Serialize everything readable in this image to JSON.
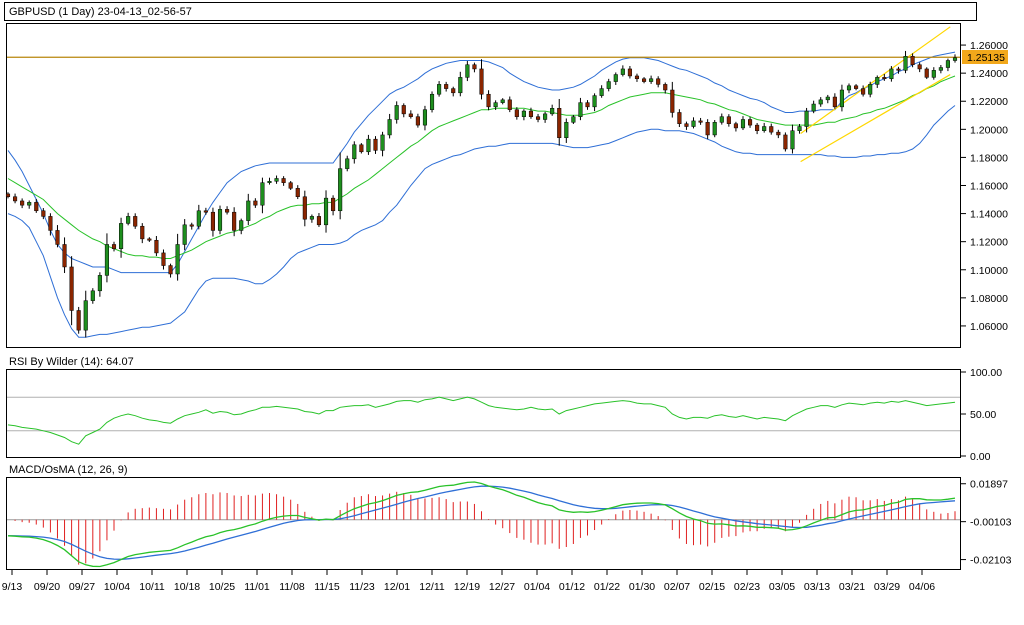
{
  "header": {
    "title": "GBPUSD (1 Day) 23-04-13_02-56-57"
  },
  "chart_data": {
    "type": "candlestick",
    "symbol": "GBPUSD",
    "timeframe": "1 Day",
    "x_tick_labels": [
      "9/13",
      "09/20",
      "09/27",
      "10/04",
      "10/11",
      "10/18",
      "10/25",
      "11/01",
      "11/08",
      "11/15",
      "11/23",
      "12/01",
      "12/11",
      "12/19",
      "12/27",
      "01/04",
      "01/12",
      "01/22",
      "01/30",
      "02/07",
      "02/15",
      "02/23",
      "03/05",
      "03/13",
      "03/21",
      "03/29",
      "04/06"
    ],
    "price_panel": {
      "y_ticks": [
        "1.26000",
        "1.24000",
        "1.22000",
        "1.20000",
        "1.18000",
        "1.16000",
        "1.14000",
        "1.12000",
        "1.10000",
        "1.08000",
        "1.06000"
      ],
      "ylim": [
        1.045,
        1.275
      ],
      "current_price_label": "1.25135",
      "resistance_level": 1.2513,
      "close": [
        1.152,
        1.149,
        1.146,
        1.148,
        1.142,
        1.138,
        1.128,
        1.118,
        1.102,
        1.071,
        1.057,
        1.078,
        1.085,
        1.096,
        1.118,
        1.115,
        1.133,
        1.138,
        1.131,
        1.122,
        1.121,
        1.112,
        1.103,
        1.097,
        1.118,
        1.132,
        1.131,
        1.142,
        1.141,
        1.128,
        1.143,
        1.141,
        1.128,
        1.135,
        1.149,
        1.146,
        1.162,
        1.163,
        1.165,
        1.162,
        1.158,
        1.152,
        1.136,
        1.138,
        1.132,
        1.151,
        1.142,
        1.172,
        1.179,
        1.189,
        1.184,
        1.193,
        1.185,
        1.196,
        1.207,
        1.217,
        1.211,
        1.209,
        1.203,
        1.214,
        1.225,
        1.232,
        1.229,
        1.226,
        1.237,
        1.246,
        1.243,
        1.225,
        1.216,
        1.219,
        1.221,
        1.214,
        1.209,
        1.213,
        1.209,
        1.207,
        1.211,
        1.215,
        1.194,
        1.205,
        1.209,
        1.219,
        1.216,
        1.224,
        1.229,
        1.234,
        1.239,
        1.243,
        1.238,
        1.236,
        1.234,
        1.236,
        1.232,
        1.228,
        1.212,
        1.204,
        1.202,
        1.206,
        1.205,
        1.196,
        1.205,
        1.209,
        1.204,
        1.201,
        1.207,
        1.203,
        1.199,
        1.202,
        1.198,
        1.196,
        1.186,
        1.199,
        1.202,
        1.213,
        1.218,
        1.221,
        1.223,
        1.216,
        1.228,
        1.231,
        1.229,
        1.225,
        1.232,
        1.237,
        1.236,
        1.243,
        1.242,
        1.252,
        1.246,
        1.243,
        1.237,
        1.242,
        1.244,
        1.249,
        1.251
      ],
      "upper_band": [
        1.185,
        1.178,
        1.17,
        1.16,
        1.15,
        1.14,
        1.128,
        1.118,
        1.112,
        1.108,
        1.106,
        1.104,
        1.102,
        1.102,
        1.102,
        1.1,
        1.098,
        1.098,
        1.098,
        1.098,
        1.098,
        1.098,
        1.098,
        1.098,
        1.104,
        1.113,
        1.122,
        1.131,
        1.14,
        1.148,
        1.155,
        1.162,
        1.166,
        1.17,
        1.172,
        1.174,
        1.175,
        1.176,
        1.176,
        1.176,
        1.176,
        1.176,
        1.176,
        1.176,
        1.176,
        1.176,
        1.176,
        1.183,
        1.19,
        1.198,
        1.204,
        1.21,
        1.215,
        1.22,
        1.225,
        1.228,
        1.23,
        1.233,
        1.236,
        1.24,
        1.243,
        1.245,
        1.247,
        1.248,
        1.249,
        1.249,
        1.249,
        1.249,
        1.248,
        1.246,
        1.244,
        1.24,
        1.237,
        1.234,
        1.232,
        1.23,
        1.229,
        1.228,
        1.228,
        1.229,
        1.23,
        1.232,
        1.235,
        1.238,
        1.242,
        1.245,
        1.248,
        1.25,
        1.251,
        1.251,
        1.251,
        1.25,
        1.249,
        1.247,
        1.245,
        1.243,
        1.242,
        1.24,
        1.238,
        1.236,
        1.233,
        1.231,
        1.228,
        1.226,
        1.224,
        1.222,
        1.221,
        1.219,
        1.216,
        1.214,
        1.212,
        1.212,
        1.213,
        1.213,
        1.213,
        1.214,
        1.214,
        1.214,
        1.22,
        1.224,
        1.226,
        1.229,
        1.231,
        1.234,
        1.236,
        1.238,
        1.241,
        1.243,
        1.246,
        1.248,
        1.25,
        1.252,
        1.253,
        1.254,
        1.255
      ],
      "middle_band": [
        1.165,
        1.162,
        1.159,
        1.156,
        1.153,
        1.15,
        1.145,
        1.14,
        1.136,
        1.132,
        1.128,
        1.125,
        1.122,
        1.12,
        1.117,
        1.115,
        1.113,
        1.111,
        1.11,
        1.11,
        1.109,
        1.109,
        1.108,
        1.108,
        1.11,
        1.112,
        1.114,
        1.117,
        1.12,
        1.122,
        1.124,
        1.126,
        1.127,
        1.129,
        1.131,
        1.133,
        1.136,
        1.138,
        1.141,
        1.143,
        1.145,
        1.146,
        1.146,
        1.147,
        1.147,
        1.148,
        1.148,
        1.151,
        1.154,
        1.158,
        1.161,
        1.164,
        1.168,
        1.172,
        1.176,
        1.18,
        1.184,
        1.188,
        1.191,
        1.195,
        1.199,
        1.202,
        1.204,
        1.206,
        1.208,
        1.21,
        1.212,
        1.214,
        1.214,
        1.215,
        1.215,
        1.215,
        1.215,
        1.215,
        1.214,
        1.213,
        1.213,
        1.212,
        1.211,
        1.21,
        1.21,
        1.21,
        1.211,
        1.212,
        1.214,
        1.217,
        1.219,
        1.221,
        1.223,
        1.224,
        1.225,
        1.226,
        1.226,
        1.226,
        1.225,
        1.224,
        1.223,
        1.222,
        1.221,
        1.219,
        1.218,
        1.216,
        1.214,
        1.213,
        1.211,
        1.209,
        1.207,
        1.206,
        1.205,
        1.204,
        1.203,
        1.203,
        1.203,
        1.203,
        1.203,
        1.204,
        1.205,
        1.205,
        1.207,
        1.208,
        1.209,
        1.211,
        1.212,
        1.214,
        1.215,
        1.217,
        1.219,
        1.221,
        1.224,
        1.226,
        1.229,
        1.231,
        1.234,
        1.236,
        1.238
      ],
      "lower_band": [
        1.14,
        1.138,
        1.135,
        1.13,
        1.12,
        1.11,
        1.095,
        1.08,
        1.068,
        1.058,
        1.052,
        1.052,
        1.053,
        1.054,
        1.054,
        1.055,
        1.056,
        1.057,
        1.058,
        1.059,
        1.059,
        1.06,
        1.061,
        1.062,
        1.066,
        1.07,
        1.078,
        1.086,
        1.092,
        1.094,
        1.094,
        1.094,
        1.094,
        1.093,
        1.092,
        1.09,
        1.09,
        1.093,
        1.097,
        1.102,
        1.108,
        1.112,
        1.114,
        1.116,
        1.118,
        1.118,
        1.118,
        1.119,
        1.121,
        1.125,
        1.128,
        1.13,
        1.132,
        1.135,
        1.141,
        1.146,
        1.153,
        1.16,
        1.166,
        1.172,
        1.175,
        1.177,
        1.179,
        1.181,
        1.182,
        1.184,
        1.186,
        1.187,
        1.188,
        1.188,
        1.189,
        1.19,
        1.19,
        1.19,
        1.19,
        1.19,
        1.19,
        1.19,
        1.189,
        1.188,
        1.187,
        1.187,
        1.187,
        1.188,
        1.189,
        1.19,
        1.192,
        1.194,
        1.196,
        1.198,
        1.199,
        1.2,
        1.2,
        1.199,
        1.199,
        1.199,
        1.198,
        1.197,
        1.195,
        1.193,
        1.191,
        1.188,
        1.186,
        1.184,
        1.183,
        1.183,
        1.182,
        1.182,
        1.182,
        1.182,
        1.182,
        1.182,
        1.182,
        1.182,
        1.182,
        1.182,
        1.181,
        1.181,
        1.18,
        1.18,
        1.18,
        1.181,
        1.181,
        1.182,
        1.182,
        1.183,
        1.183,
        1.184,
        1.186,
        1.19,
        1.196,
        1.203,
        1.208,
        1.213,
        1.217
      ],
      "channel_upper": [
        [
          1.197,
          1.273
        ]
      ],
      "channel_lower": [
        [
          1.177,
          1.239
        ]
      ]
    },
    "rsi_panel": {
      "label": "RSI By Wilder (14): 64.07",
      "y_ticks": [
        "100.00",
        "50.00",
        "0.00"
      ],
      "ylim": [
        0,
        100
      ],
      "levels": [
        70,
        30
      ],
      "values": [
        37,
        36,
        34,
        33,
        32,
        30,
        28,
        25,
        22,
        17,
        14,
        24,
        28,
        32,
        40,
        45,
        48,
        50,
        48,
        45,
        43,
        42,
        40,
        39,
        44,
        48,
        50,
        52,
        55,
        51,
        53,
        52,
        49,
        50,
        53,
        55,
        58,
        58,
        59,
        58,
        57,
        56,
        53,
        52,
        50,
        54,
        54,
        58,
        59,
        60,
        60,
        61,
        58,
        60,
        62,
        65,
        66,
        66,
        64,
        67,
        68,
        70,
        68,
        66,
        68,
        70,
        68,
        64,
        60,
        58,
        57,
        56,
        55,
        56,
        58,
        56,
        55,
        56,
        50,
        54,
        56,
        58,
        60,
        62,
        63,
        64,
        65,
        66,
        65,
        63,
        62,
        62,
        60,
        58,
        50,
        46,
        44,
        46,
        46,
        45,
        48,
        49,
        47,
        46,
        48,
        46,
        44,
        46,
        45,
        44,
        42,
        48,
        52,
        56,
        58,
        60,
        60,
        58,
        61,
        63,
        62,
        61,
        63,
        64,
        63,
        65,
        64,
        66,
        64,
        62,
        60,
        61,
        62,
        63,
        64
      ],
      "current": 64.07
    },
    "macd_panel": {
      "label": "MACD/OsMA (12, 26, 9)",
      "y_ticks": [
        "0.01897",
        "-0.00103",
        "-0.02103"
      ],
      "ylim": [
        -0.026,
        0.022
      ],
      "macd": [
        -0.0085,
        -0.0087,
        -0.009,
        -0.0092,
        -0.0097,
        -0.0105,
        -0.0118,
        -0.0136,
        -0.0158,
        -0.019,
        -0.0222,
        -0.0238,
        -0.0246,
        -0.0247,
        -0.0238,
        -0.0226,
        -0.021,
        -0.0194,
        -0.0184,
        -0.0178,
        -0.0172,
        -0.0168,
        -0.0165,
        -0.0162,
        -0.0148,
        -0.0132,
        -0.0118,
        -0.0103,
        -0.009,
        -0.0082,
        -0.0068,
        -0.0058,
        -0.0052,
        -0.0043,
        -0.0031,
        -0.0022,
        -0.0008,
        0.0004,
        0.0013,
        0.0019,
        0.0022,
        0.0022,
        0.0012,
        0.0005,
        -0.0002,
        0.0003,
        0.0,
        0.0021,
        0.004,
        0.0058,
        0.007,
        0.0083,
        0.009,
        0.0101,
        0.0114,
        0.0128,
        0.0137,
        0.0144,
        0.0147,
        0.0155,
        0.0165,
        0.0175,
        0.018,
        0.0182,
        0.019,
        0.0197,
        0.0199,
        0.0191,
        0.0178,
        0.0167,
        0.0158,
        0.0144,
        0.0129,
        0.0118,
        0.0104,
        0.009,
        0.008,
        0.0073,
        0.0052,
        0.0044,
        0.0039,
        0.0041,
        0.0039,
        0.0043,
        0.005,
        0.0059,
        0.0069,
        0.0079,
        0.0084,
        0.0087,
        0.0088,
        0.0088,
        0.0085,
        0.0078,
        0.0058,
        0.0036,
        0.0017,
        0.0004,
        -0.0005,
        -0.0019,
        -0.0023,
        -0.0022,
        -0.0027,
        -0.0033,
        -0.0032,
        -0.0035,
        -0.004,
        -0.004,
        -0.0042,
        -0.0045,
        -0.0055,
        -0.0052,
        -0.0046,
        -0.0032,
        -0.0017,
        -0.0003,
        0.001,
        0.0012,
        0.0027,
        0.0041,
        0.0049,
        0.0052,
        0.006,
        0.007,
        0.0075,
        0.0086,
        0.0092,
        0.0107,
        0.0111,
        0.0111,
        0.0105,
        0.0104,
        0.0104,
        0.0108,
        0.0114
      ],
      "signal": [
        -0.0085,
        -0.0085,
        -0.0086,
        -0.0087,
        -0.0089,
        -0.0092,
        -0.0097,
        -0.0105,
        -0.0115,
        -0.013,
        -0.0148,
        -0.0166,
        -0.0182,
        -0.0195,
        -0.0204,
        -0.0208,
        -0.0209,
        -0.0206,
        -0.0202,
        -0.0197,
        -0.0192,
        -0.0187,
        -0.0183,
        -0.0179,
        -0.0173,
        -0.0165,
        -0.0155,
        -0.0145,
        -0.0134,
        -0.0124,
        -0.0113,
        -0.0102,
        -0.0092,
        -0.0082,
        -0.0072,
        -0.0062,
        -0.0051,
        -0.004,
        -0.0029,
        -0.0019,
        -0.0011,
        -0.0004,
        -0.0001,
        0.0,
        0.0,
        0.0001,
        0.0001,
        0.0005,
        0.0012,
        0.0021,
        0.0031,
        0.0041,
        0.0051,
        0.0061,
        0.0071,
        0.0082,
        0.0093,
        0.0103,
        0.0112,
        0.012,
        0.0129,
        0.0138,
        0.0146,
        0.0153,
        0.016,
        0.0167,
        0.0173,
        0.0177,
        0.0177,
        0.0175,
        0.0172,
        0.0166,
        0.0159,
        0.0151,
        0.0142,
        0.0131,
        0.0121,
        0.0112,
        0.01,
        0.0089,
        0.0079,
        0.0071,
        0.0065,
        0.006,
        0.0058,
        0.0058,
        0.006,
        0.0064,
        0.0068,
        0.0072,
        0.0075,
        0.0078,
        0.0079,
        0.0079,
        0.0075,
        0.0067,
        0.0057,
        0.0046,
        0.0036,
        0.0025,
        0.0015,
        0.0008,
        0.0001,
        -0.0006,
        -0.0011,
        -0.0016,
        -0.0021,
        -0.0025,
        -0.0028,
        -0.0032,
        -0.0036,
        -0.004,
        -0.0041,
        -0.004,
        -0.0035,
        -0.0029,
        -0.0021,
        -0.0015,
        -0.0006,
        0.0003,
        0.0012,
        0.002,
        0.0028,
        0.0036,
        0.0044,
        0.0052,
        0.006,
        0.0069,
        0.0077,
        0.0084,
        0.0088,
        0.0091,
        0.0094,
        0.0097,
        0.01
      ]
    }
  }
}
